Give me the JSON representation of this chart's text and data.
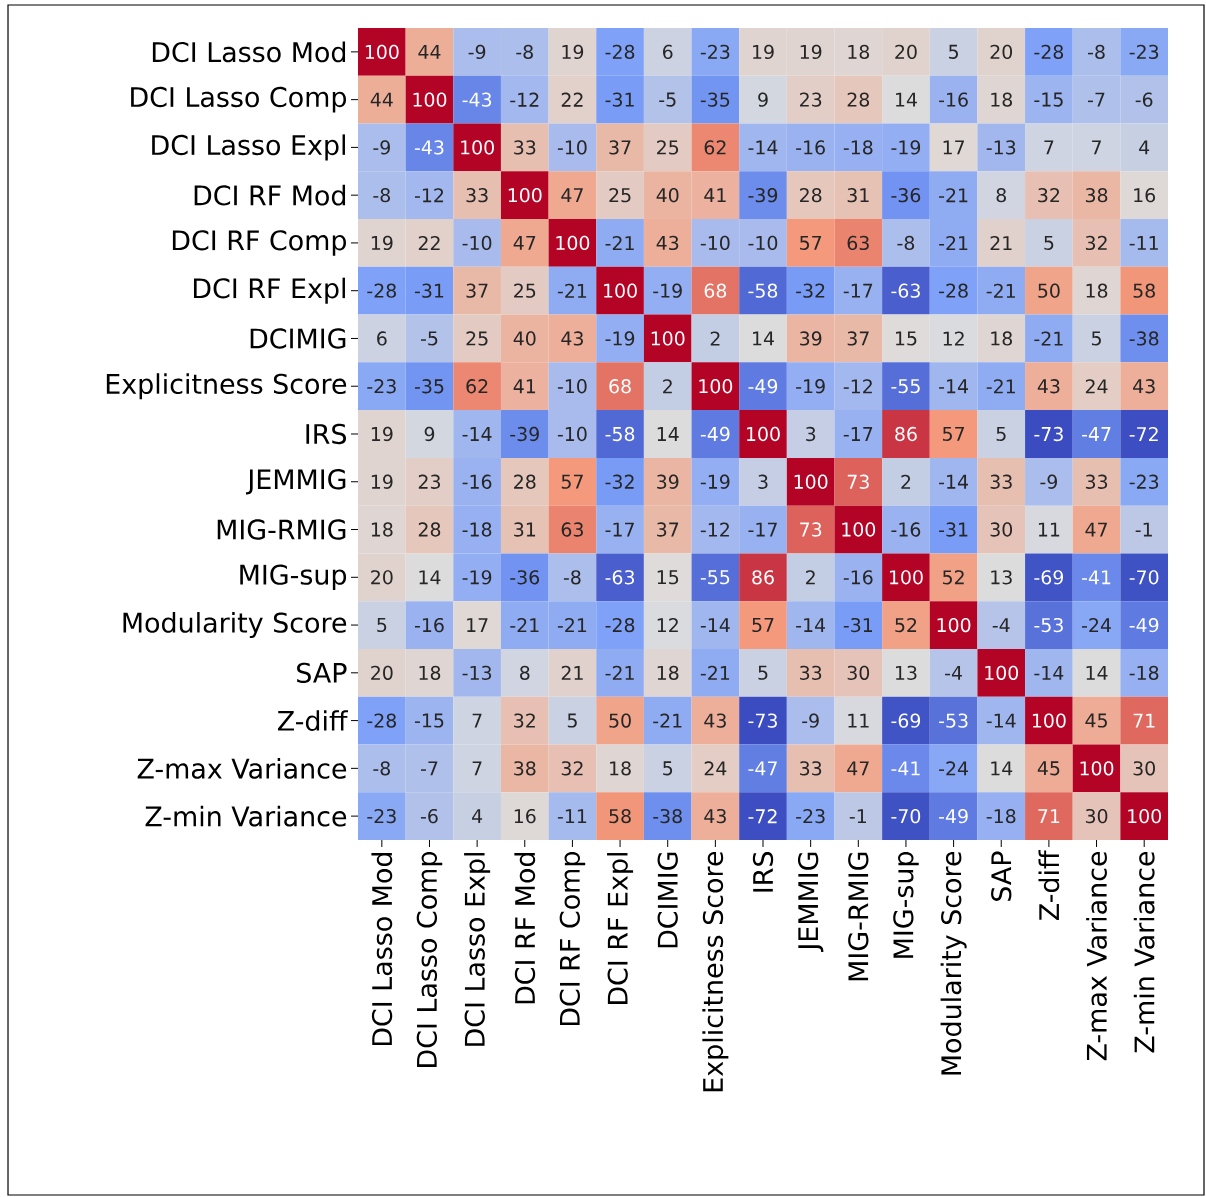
{
  "chart_data": {
    "type": "heatmap",
    "categories": [
      "DCI Lasso Mod",
      "DCI Lasso Comp",
      "DCI Lasso Expl",
      "DCI RF Mod",
      "DCI RF Comp",
      "DCI RF Expl",
      "DCIMIG",
      "Explicitness Score",
      "IRS",
      "JEMMIG",
      "MIG-RMIG",
      "MIG-sup",
      "Modularity Score",
      "SAP",
      "Z-diff",
      "Z-max Variance",
      "Z-min Variance"
    ],
    "y_categories": [
      "DCI Lasso Mod",
      "DCI Lasso Comp",
      "DCI Lasso Expl",
      "DCI RF Mod",
      "DCI RF Comp",
      "DCI RF Expl",
      "DCIMIG",
      "Explicitness Score",
      "IRS",
      "JEMMIG",
      "MIG-RMIG",
      "MIG-sup",
      "Modularity Score",
      "SAP",
      "Z-diff",
      "Z-max Variance",
      "Z-min Variance"
    ],
    "cells": [
      [
        100,
        44,
        -9,
        -8,
        19,
        -28,
        6,
        -23,
        19,
        19,
        18,
        20,
        5,
        20,
        -28,
        -8,
        -23
      ],
      [
        44,
        100,
        -43,
        -12,
        22,
        -31,
        -5,
        -35,
        9,
        23,
        28,
        14,
        -16,
        18,
        -15,
        -7,
        -6
      ],
      [
        -9,
        -43,
        100,
        33,
        -10,
        37,
        25,
        62,
        -14,
        -16,
        -18,
        -19,
        17,
        -13,
        7,
        7,
        4
      ],
      [
        -8,
        -12,
        33,
        100,
        47,
        25,
        40,
        41,
        -39,
        28,
        31,
        -36,
        -21,
        8,
        32,
        38,
        16
      ],
      [
        19,
        22,
        -10,
        47,
        100,
        -21,
        43,
        -10,
        -10,
        57,
        63,
        -8,
        -21,
        21,
        5,
        32,
        -11
      ],
      [
        -28,
        -31,
        37,
        25,
        -21,
        100,
        -19,
        68,
        -58,
        -32,
        -17,
        -63,
        -28,
        -21,
        50,
        18,
        58
      ],
      [
        6,
        -5,
        25,
        40,
        43,
        -19,
        100,
        2,
        14,
        39,
        37,
        15,
        12,
        18,
        -21,
        5,
        -38
      ],
      [
        -23,
        -35,
        62,
        41,
        -10,
        68,
        2,
        100,
        -49,
        -19,
        -12,
        -55,
        -14,
        -21,
        43,
        24,
        43
      ],
      [
        19,
        9,
        -14,
        -39,
        -10,
        -58,
        14,
        -49,
        100,
        3,
        -17,
        86,
        57,
        5,
        -73,
        -47,
        -72
      ],
      [
        19,
        23,
        -16,
        28,
        57,
        -32,
        39,
        -19,
        3,
        100,
        73,
        2,
        -14,
        33,
        -9,
        33,
        -23
      ],
      [
        18,
        28,
        -18,
        31,
        63,
        -17,
        37,
        -12,
        -17,
        73,
        100,
        -16,
        -31,
        30,
        11,
        47,
        -1
      ],
      [
        20,
        14,
        -19,
        -36,
        -8,
        -63,
        15,
        -55,
        86,
        2,
        -16,
        100,
        52,
        13,
        -69,
        -41,
        -70
      ],
      [
        5,
        -16,
        17,
        -21,
        -21,
        -28,
        12,
        -14,
        57,
        -14,
        -31,
        52,
        100,
        -4,
        -53,
        -24,
        -49
      ],
      [
        20,
        18,
        -13,
        8,
        21,
        -21,
        18,
        -21,
        5,
        33,
        30,
        13,
        -4,
        100,
        -14,
        14,
        -18
      ],
      [
        -28,
        -15,
        7,
        32,
        5,
        50,
        -21,
        43,
        -73,
        -9,
        11,
        -69,
        -53,
        -14,
        100,
        45,
        71
      ],
      [
        -8,
        -7,
        7,
        38,
        32,
        18,
        5,
        24,
        -47,
        33,
        47,
        -41,
        -24,
        14,
        45,
        100,
        30
      ],
      [
        -23,
        -6,
        4,
        16,
        -11,
        58,
        -38,
        43,
        -72,
        -23,
        -1,
        -70,
        -49,
        -18,
        71,
        30,
        100
      ]
    ],
    "data_labels": true
  }
}
